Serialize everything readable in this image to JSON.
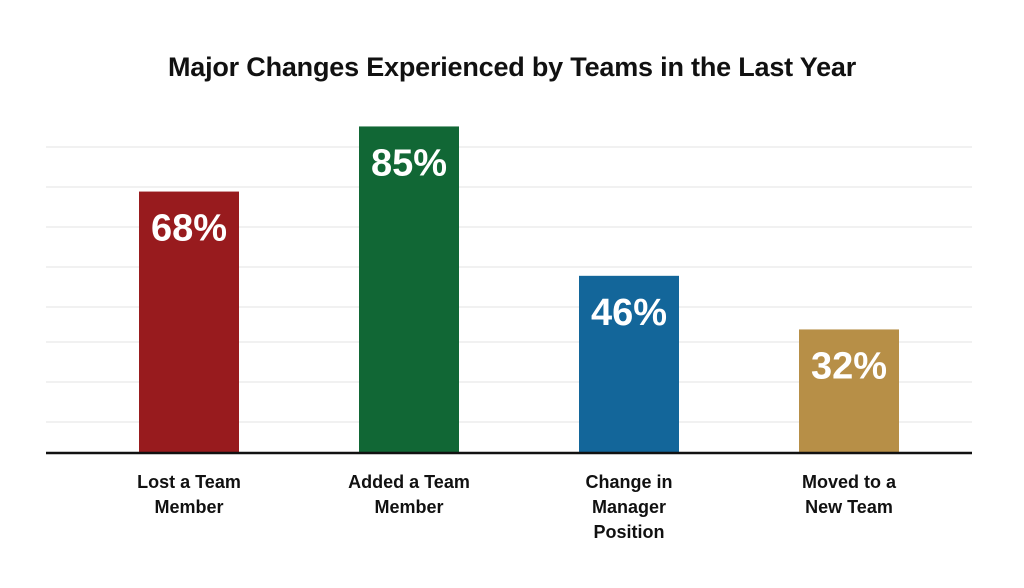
{
  "chart_data": {
    "type": "bar",
    "title": "Major Changes Experienced by Teams in the Last Year",
    "categories": [
      [
        "Lost a Team",
        "Member"
      ],
      [
        "Added a Team",
        "Member"
      ],
      [
        "Change in",
        "Manager",
        "Position"
      ],
      [
        "Moved to a",
        "New Team"
      ]
    ],
    "values": [
      68,
      85,
      46,
      32
    ],
    "data_labels": [
      "68%",
      "85%",
      "46%",
      "32%"
    ],
    "colors": [
      "#981b1e",
      "#116735",
      "#13669a",
      "#b78f47"
    ],
    "ylim": [
      0,
      100
    ],
    "grid": true,
    "legend": "none"
  }
}
